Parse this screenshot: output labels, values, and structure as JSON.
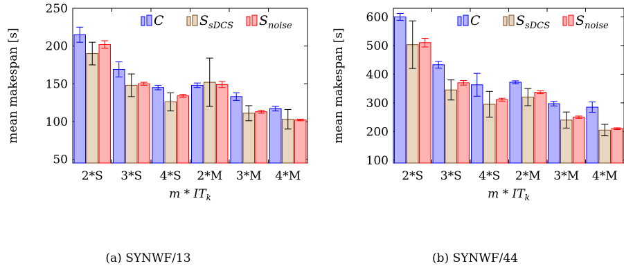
{
  "captions": [
    "(a) SYNWF/13",
    "(b) SYNWF/44"
  ],
  "colors": {
    "C": {
      "fill": "#b3b3ff",
      "stroke": "#0000ff"
    },
    "S_sDCS": {
      "fill": "#e8d6c0",
      "stroke": "#7a4a20"
    },
    "S_noise": {
      "fill": "#ffb3b3",
      "stroke": "#ff0000"
    }
  },
  "chart_data": [
    {
      "type": "bar",
      "title": "",
      "xlabel": "m * IT_k",
      "ylabel": "mean makespan [s]",
      "ylim": [
        45,
        250
      ],
      "yticks": [
        50,
        100,
        150,
        200,
        250
      ],
      "categories": [
        "2*S",
        "3*S",
        "4*S",
        "2*M",
        "3*M",
        "4*M"
      ],
      "legend_position": "top-right",
      "series": [
        {
          "name": "C",
          "values": [
            215,
            169,
            145,
            148,
            133,
            117
          ],
          "err": [
            10,
            10,
            3,
            3,
            5,
            3
          ]
        },
        {
          "name": "S_sDCS",
          "values": [
            190,
            148,
            126,
            152,
            111,
            103
          ],
          "err": [
            15,
            15,
            12,
            32,
            10,
            13
          ]
        },
        {
          "name": "S_noise",
          "values": [
            202,
            150,
            134,
            149,
            113,
            102
          ],
          "err": [
            5,
            2,
            2,
            4,
            2,
            1
          ]
        }
      ]
    },
    {
      "type": "bar",
      "title": "",
      "xlabel": "m * IT_k",
      "ylabel": "mean makespan [s]",
      "ylim": [
        90,
        630
      ],
      "yticks": [
        100,
        200,
        300,
        400,
        500,
        600
      ],
      "categories": [
        "2*S",
        "3*S",
        "4*S",
        "2*M",
        "3*M",
        "4*M"
      ],
      "legend_position": "top-right",
      "series": [
        {
          "name": "C",
          "values": [
            600,
            433,
            363,
            372,
            297,
            285
          ],
          "err": [
            12,
            12,
            40,
            5,
            8,
            18
          ]
        },
        {
          "name": "S_sDCS",
          "values": [
            503,
            345,
            295,
            320,
            240,
            205
          ],
          "err": [
            83,
            35,
            45,
            30,
            28,
            20
          ]
        },
        {
          "name": "S_noise",
          "values": [
            510,
            370,
            311,
            337,
            250,
            210
          ],
          "err": [
            15,
            8,
            5,
            5,
            4,
            3
          ]
        }
      ]
    }
  ]
}
